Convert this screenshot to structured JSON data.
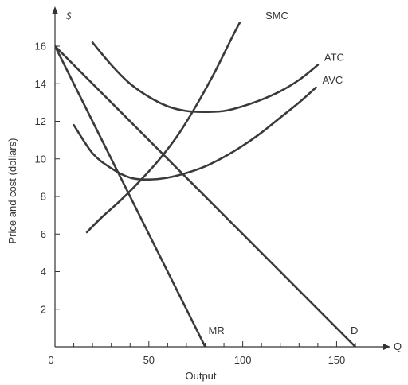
{
  "chart_data": {
    "type": "line",
    "title": "",
    "xlabel": "Output",
    "ylabel": "Price and cost (dollars)",
    "y_axis_symbol": "$",
    "x_axis_symbol": "Q",
    "origin_label": "0",
    "xlim": [
      0,
      175
    ],
    "ylim": [
      0,
      17.5
    ],
    "x_ticks": [
      50,
      100,
      150
    ],
    "x_tick_labels": [
      "50",
      "100",
      "150"
    ],
    "x_minor_ticks": [
      10,
      20,
      30,
      40,
      60,
      70,
      80,
      90,
      110,
      120,
      130,
      140,
      160
    ],
    "y_ticks": [
      2,
      4,
      6,
      8,
      10,
      12,
      14,
      16
    ],
    "y_tick_labels": [
      "2",
      "4",
      "6",
      "8",
      "10",
      "12",
      "14",
      "16"
    ],
    "grid": false,
    "legend": "none",
    "series": [
      {
        "name": "SMC",
        "x": [
          17,
          25,
          35,
          45,
          55,
          65,
          75,
          85,
          95,
          103
        ],
        "y": [
          6.1,
          6.9,
          7.8,
          8.8,
          9.9,
          11.2,
          12.8,
          14.6,
          16.6,
          18.1
        ]
      },
      {
        "name": "ATC",
        "x": [
          20,
          30,
          40,
          50,
          60,
          70,
          80,
          90,
          100,
          110,
          120,
          130,
          140
        ],
        "y": [
          16.2,
          15.0,
          14.0,
          13.3,
          12.8,
          12.55,
          12.5,
          12.55,
          12.8,
          13.15,
          13.6,
          14.2,
          15.0
        ]
      },
      {
        "name": "AVC",
        "x": [
          10,
          20,
          30,
          40,
          50,
          60,
          70,
          80,
          90,
          100,
          110,
          120,
          130,
          139
        ],
        "y": [
          11.8,
          10.3,
          9.5,
          9.0,
          8.9,
          9.0,
          9.25,
          9.6,
          10.1,
          10.7,
          11.4,
          12.2,
          13.0,
          13.8
        ]
      },
      {
        "name": "D",
        "x": [
          0,
          160
        ],
        "y": [
          16,
          0
        ]
      },
      {
        "name": "MR",
        "x": [
          0,
          80
        ],
        "y": [
          16,
          0
        ]
      }
    ]
  },
  "colors": {
    "curve": "#3a3a3a",
    "axis": "#333333",
    "text": "#333333",
    "background": "#ffffff"
  }
}
